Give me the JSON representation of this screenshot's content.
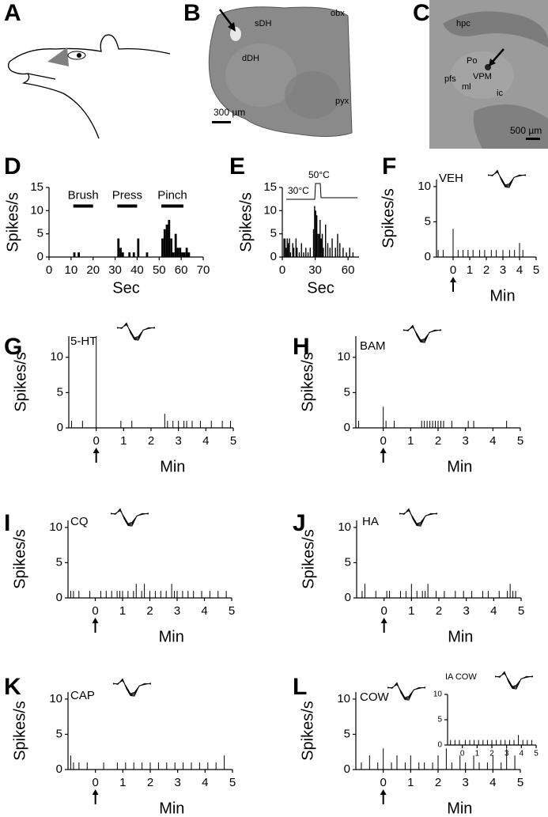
{
  "images": [
    {
      "panel": "A"
    },
    {
      "panel": "B",
      "labels": [
        "sDH",
        "obx",
        "dDH",
        "pyx"
      ],
      "scale": "300 µm"
    },
    {
      "panel": "C",
      "labels": [
        "hpc",
        "Po",
        "pfs",
        "VPM",
        "ml",
        "ic"
      ],
      "scale": "500 µm"
    }
  ],
  "chart_data": [
    {
      "type": "bar",
      "panel": "D",
      "y_label": "Spikes/s",
      "x_label": "Sec",
      "x": [
        11,
        13,
        31,
        32,
        33,
        36,
        38,
        40,
        44,
        51,
        52,
        53,
        54,
        55,
        56,
        57,
        58,
        59,
        60,
        61,
        62,
        63
      ],
      "values": [
        1,
        1,
        4,
        2,
        1,
        1,
        1,
        4,
        1,
        4,
        6,
        7,
        8,
        4,
        1,
        5,
        2,
        2,
        1,
        1,
        2,
        1
      ],
      "color": "#000000",
      "xlim": [
        0,
        70
      ],
      "ylim": [
        0,
        15
      ],
      "xticks": [
        0,
        10,
        20,
        30,
        40,
        50,
        60,
        70
      ],
      "yticks": [
        0,
        5,
        10,
        15
      ],
      "annotations": [
        {
          "text": "Brush",
          "from": 11,
          "to": 20,
          "y": 11
        },
        {
          "text": "Press",
          "from": 31,
          "to": 40,
          "y": 11
        },
        {
          "text": "Pinch",
          "from": 51,
          "to": 61,
          "y": 11
        }
      ]
    },
    {
      "type": "bar",
      "panel": "E",
      "y_label": "Spikes/s",
      "x_label": "Sec",
      "x": [
        1,
        2,
        3,
        4,
        5,
        6,
        7,
        9,
        10,
        12,
        13,
        15,
        17,
        19,
        21,
        23,
        25,
        28,
        29,
        30,
        31,
        32,
        33,
        34,
        35,
        36,
        37,
        39,
        41,
        43,
        45,
        48,
        50,
        52,
        55,
        58,
        61,
        64
      ],
      "values": [
        4,
        4,
        2,
        4,
        3,
        4,
        1,
        3,
        2,
        4,
        2,
        1,
        3,
        1,
        2,
        1,
        2,
        6,
        11,
        10,
        9,
        5,
        5,
        8,
        4,
        5,
        2,
        7,
        3,
        2,
        4,
        2,
        5,
        3,
        2,
        1,
        2,
        1
      ],
      "color": "#000000",
      "xlim": [
        0,
        70
      ],
      "ylim": [
        0,
        15
      ],
      "xticks": [
        0,
        30,
        60
      ],
      "yticks": [
        0,
        5,
        10,
        15
      ],
      "annotations": [
        {
          "text": "30°C"
        },
        {
          "text": "50°C"
        }
      ]
    },
    {
      "type": "spike",
      "panel": "F",
      "title": "VEH",
      "y_label": "Spikes/s",
      "x_label": "Min",
      "x": [
        -0.9,
        -0.6,
        0,
        0.3,
        0.6,
        0.9,
        1.2,
        1.6,
        1.9,
        2.3,
        2.6,
        3.0,
        3.4,
        3.7,
        4.0,
        4.2
      ],
      "values": [
        1,
        1,
        4,
        1,
        1,
        1,
        1,
        1,
        1,
        1,
        1,
        1,
        1,
        1,
        2,
        1
      ],
      "color": "#000000",
      "xlim": [
        -1,
        5
      ],
      "ylim": [
        0,
        11
      ],
      "xticks": [
        0,
        1,
        2,
        3,
        4,
        5
      ],
      "yticks": [
        0,
        5,
        10
      ]
    },
    {
      "type": "spike",
      "panel": "G",
      "title": "5-HT",
      "y_label": "Spikes/s",
      "x_label": "Min",
      "x": [
        -0.9,
        -0.5,
        0,
        0.9,
        1.3,
        2.5,
        2.6,
        2.8,
        3.0,
        3.2,
        3.3,
        3.5,
        3.8,
        4.2,
        4.6,
        4.9
      ],
      "values": [
        1,
        1,
        13,
        1,
        1,
        2,
        1,
        1,
        1,
        1,
        1,
        1,
        1,
        1,
        1,
        1
      ],
      "color": "#000000",
      "xlim": [
        -1,
        5
      ],
      "ylim": [
        0,
        13
      ],
      "xticks": [
        0,
        1,
        2,
        3,
        4,
        5
      ],
      "yticks": [
        0,
        5,
        10
      ]
    },
    {
      "type": "spike",
      "panel": "H",
      "title": "BAM",
      "y_label": "Spikes/s",
      "x_label": "Min",
      "x": [
        -0.9,
        0,
        0.1,
        0.4,
        1.4,
        1.5,
        1.6,
        1.7,
        1.8,
        1.9,
        2.0,
        2.1,
        2.2,
        2.5,
        3.1,
        3.3,
        4.5
      ],
      "values": [
        1,
        3,
        1,
        1,
        1,
        1,
        1,
        1,
        1,
        1,
        1,
        1,
        1,
        1,
        1,
        1,
        1
      ],
      "color": "#000000",
      "xlim": [
        -1,
        5
      ],
      "ylim": [
        0,
        13
      ],
      "xticks": [
        0,
        1,
        2,
        3,
        4,
        5
      ],
      "yticks": [
        0,
        5,
        10
      ]
    },
    {
      "type": "spike",
      "panel": "I",
      "title": "CQ",
      "y_label": "Spikes/s",
      "x_label": "Min",
      "x": [
        -0.9,
        -0.8,
        -0.6,
        -0.2,
        0.2,
        0.4,
        0.6,
        0.8,
        0.9,
        1.0,
        1.2,
        1.4,
        1.5,
        1.7,
        1.8,
        2.0,
        2.2,
        2.4,
        2.6,
        2.8,
        2.9,
        3.0,
        3.2,
        3.4,
        3.6,
        3.9,
        4.2,
        4.5,
        4.8
      ],
      "values": [
        1,
        1,
        1,
        1,
        1,
        1,
        1,
        1,
        1,
        1,
        1,
        1,
        2,
        1,
        2,
        1,
        1,
        1,
        1,
        2,
        1,
        1,
        1,
        1,
        1,
        1,
        1,
        1,
        1
      ],
      "color": "#000000",
      "xlim": [
        -1,
        5
      ],
      "ylim": [
        0,
        11
      ],
      "xticks": [
        0,
        1,
        2,
        3,
        4,
        5
      ],
      "yticks": [
        0,
        5,
        10
      ]
    },
    {
      "type": "spike",
      "panel": "J",
      "title": "HA",
      "y_label": "Spikes/s",
      "x_label": "Min",
      "x": [
        -0.8,
        -0.7,
        -0.3,
        0.1,
        0.2,
        0.6,
        0.8,
        1.0,
        1.2,
        1.4,
        1.5,
        1.6,
        1.9,
        2.2,
        2.6,
        2.9,
        3.2,
        3.6,
        3.8,
        4.2,
        4.5,
        4.6,
        4.7,
        4.8
      ],
      "values": [
        1,
        2,
        1,
        1,
        1,
        1,
        1,
        2,
        1,
        1,
        1,
        2,
        1,
        1,
        1,
        1,
        1,
        1,
        1,
        1,
        1,
        2,
        1,
        1
      ],
      "color": "#000000",
      "xlim": [
        -1,
        5
      ],
      "ylim": [
        0,
        11
      ],
      "xticks": [
        0,
        1,
        2,
        3,
        4,
        5
      ],
      "yticks": [
        0,
        5,
        10
      ]
    },
    {
      "type": "spike",
      "panel": "K",
      "title": "CAP",
      "y_label": "Spikes/s",
      "x_label": "Min",
      "x": [
        -0.9,
        -0.8,
        -0.6,
        -0.3,
        0.3,
        0.8,
        1.1,
        1.4,
        1.7,
        2.0,
        2.3,
        2.6,
        2.9,
        3.2,
        3.5,
        3.8,
        4.1,
        4.4,
        4.7
      ],
      "values": [
        2,
        1,
        1,
        1,
        1,
        1,
        1,
        1,
        1,
        1,
        1,
        1,
        1,
        1,
        1,
        1,
        1,
        1,
        2
      ],
      "color": "#000000",
      "xlim": [
        -1,
        5
      ],
      "ylim": [
        0,
        11
      ],
      "xticks": [
        0,
        1,
        2,
        3,
        4,
        5
      ],
      "yticks": [
        0,
        5,
        10
      ]
    },
    {
      "type": "spike",
      "panel": "L",
      "title": "COW",
      "y_label": "Spikes/s",
      "x_label": "Min",
      "x": [
        -0.8,
        -0.5,
        -0.2,
        0,
        0.3,
        0.5,
        0.8,
        1.0,
        1.3,
        1.5,
        1.8,
        2.0,
        2.3,
        2.5,
        2.8,
        3.0,
        3.3,
        3.5,
        3.8,
        4.0,
        4.3,
        4.5,
        4.8
      ],
      "values": [
        1,
        2,
        1,
        3,
        1,
        2,
        1,
        2,
        1,
        1,
        1,
        2,
        3,
        1,
        2,
        1,
        2,
        1,
        1,
        2,
        1,
        3,
        2
      ],
      "color": "#000000",
      "xlim": [
        -1,
        5
      ],
      "ylim": [
        0,
        11
      ],
      "xticks": [
        0,
        1,
        2,
        3,
        4,
        5
      ],
      "yticks": [
        0,
        5,
        10
      ]
    },
    {
      "type": "spike",
      "title": "IA COW",
      "x": [
        -0.8,
        -0.5,
        -0.2,
        0.2,
        0.5,
        0.8,
        1.1,
        1.4,
        1.7,
        2.0,
        2.3,
        2.6,
        2.9,
        3.2,
        3.5,
        3.8,
        4.1,
        4.4,
        4.7
      ],
      "values": [
        1,
        1,
        1,
        1,
        1,
        1,
        1,
        1,
        1,
        1,
        1,
        1,
        1,
        1,
        1,
        2,
        1,
        1,
        1
      ],
      "color": "#000000",
      "xlim": [
        -1,
        5
      ],
      "ylim": [
        0,
        10
      ],
      "xticks": [
        0,
        1,
        2,
        3,
        4,
        5
      ],
      "yticks": [
        0,
        5,
        10
      ]
    }
  ]
}
